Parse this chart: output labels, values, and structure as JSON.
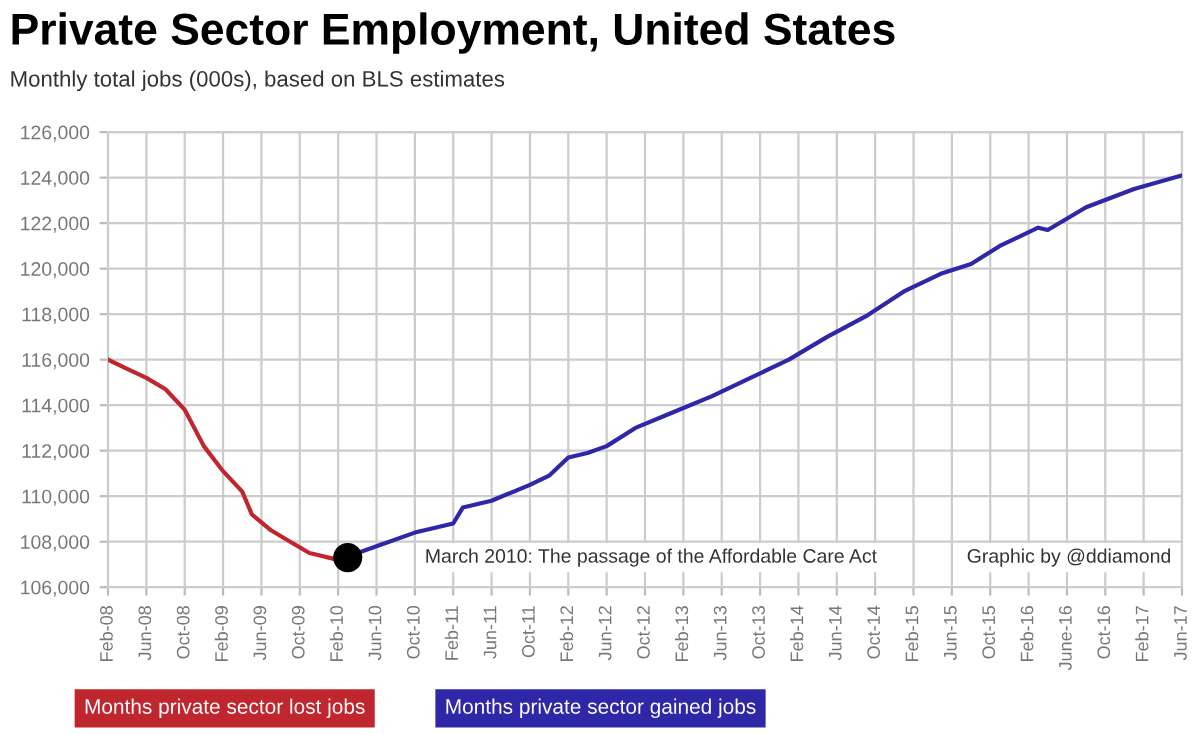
{
  "chart_data": {
    "type": "line",
    "title": "Private Sector Employment, United States",
    "subtitle": "Monthly total jobs (000s), based on BLS estimates",
    "series": [
      {
        "name": "Months private sector lost jobs",
        "color": "#c0262d",
        "x": [
          "2008-02",
          "2008-04",
          "2008-06",
          "2008-08",
          "2008-10",
          "2008-12",
          "2009-02",
          "2009-04",
          "2009-05",
          "2009-07",
          "2009-09",
          "2009-11",
          "2009-12",
          "2010-01",
          "2010-02"
        ],
        "values": [
          116000,
          115600,
          115200,
          114700,
          113800,
          112200,
          111100,
          110200,
          109200,
          108500,
          108000,
          107500,
          107400,
          107300,
          107200
        ]
      },
      {
        "name": "Months private sector gained jobs",
        "color": "#2e27a8",
        "x": [
          "2010-02",
          "2010-06",
          "2010-10",
          "2011-02",
          "2011-03",
          "2011-06",
          "2011-10",
          "2011-12",
          "2012-02",
          "2012-04",
          "2012-06",
          "2012-09",
          "2013-01",
          "2013-05",
          "2013-09",
          "2014-01",
          "2014-05",
          "2014-09",
          "2015-01",
          "2015-05",
          "2015-08",
          "2015-11",
          "2016-03",
          "2016-04",
          "2016-08",
          "2017-01",
          "2017-06"
        ],
        "values": [
          107200,
          107800,
          108400,
          108800,
          109500,
          109800,
          110500,
          110900,
          111700,
          111900,
          112200,
          113000,
          113700,
          114400,
          115200,
          116000,
          117000,
          117900,
          119000,
          119800,
          120200,
          121000,
          121800,
          121700,
          122700,
          123500,
          124100
        ]
      },
      {
        "type": "scatter",
        "color": "#000000",
        "x": [
          "2010-03"
        ],
        "values": [
          107300
        ]
      }
    ],
    "annotations": [
      "March 2010: The passage of the Affordable Care Act",
      "Graphic by @ddiamond"
    ],
    "xlim": [
      "2008-02",
      "2017-06"
    ],
    "xticks": [
      {
        "value": "2008-02",
        "label": "Feb-08"
      },
      {
        "value": "2008-06",
        "label": "Jun-08"
      },
      {
        "value": "2008-10",
        "label": "Oct-08"
      },
      {
        "value": "2009-02",
        "label": "Feb-09"
      },
      {
        "value": "2009-06",
        "label": "Jun-09"
      },
      {
        "value": "2009-10",
        "label": "Oct-09"
      },
      {
        "value": "2010-02",
        "label": "Feb-10"
      },
      {
        "value": "2010-06",
        "label": "Jun-10"
      },
      {
        "value": "2010-10",
        "label": "Oct-10"
      },
      {
        "value": "2011-02",
        "label": "Feb-11"
      },
      {
        "value": "2011-06",
        "label": "Jun-11"
      },
      {
        "value": "2011-10",
        "label": "Oct-11"
      },
      {
        "value": "2012-02",
        "label": "Feb-12"
      },
      {
        "value": "2012-06",
        "label": "Jun-12"
      },
      {
        "value": "2012-10",
        "label": "Oct-12"
      },
      {
        "value": "2013-02",
        "label": "Feb-13"
      },
      {
        "value": "2013-06",
        "label": "Jun-13"
      },
      {
        "value": "2013-10",
        "label": "Oct-13"
      },
      {
        "value": "2014-02",
        "label": "Feb-14"
      },
      {
        "value": "2014-06",
        "label": "Jun-14"
      },
      {
        "value": "2014-10",
        "label": "Oct-14"
      },
      {
        "value": "2015-02",
        "label": "Feb-15"
      },
      {
        "value": "2015-06",
        "label": "Jun-15"
      },
      {
        "value": "2015-10",
        "label": "Oct-15"
      },
      {
        "value": "2016-02",
        "label": "Feb-16"
      },
      {
        "value": "2016-06",
        "label": "June-16"
      },
      {
        "value": "2016-10",
        "label": "Oct-16"
      },
      {
        "value": "2017-02",
        "label": "Feb-17"
      },
      {
        "value": "2017-06",
        "label": "Jun-17"
      }
    ],
    "ylim": [
      106000,
      126000
    ],
    "yticks": [
      {
        "value": 106000,
        "label": "106,000"
      },
      {
        "value": 108000,
        "label": "108,000"
      },
      {
        "value": 110000,
        "label": "110,000"
      },
      {
        "value": 112000,
        "label": "112,000"
      },
      {
        "value": 114000,
        "label": "114,000"
      },
      {
        "value": 116000,
        "label": "116,000"
      },
      {
        "value": 118000,
        "label": "118,000"
      },
      {
        "value": 120000,
        "label": "120,000"
      },
      {
        "value": 122000,
        "label": "122,000"
      },
      {
        "value": 124000,
        "label": "124,000"
      },
      {
        "value": 126000,
        "label": "126,000"
      }
    ],
    "grid": true,
    "legend": "bottom",
    "line_style": "solid"
  }
}
